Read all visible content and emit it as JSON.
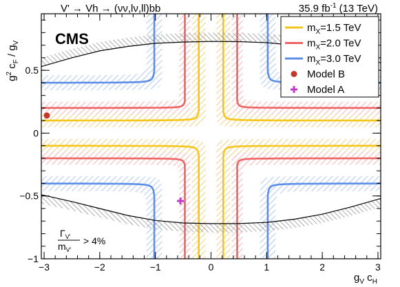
{
  "chart_data": {
    "type": "line",
    "header_left": "V' → Vh → (νν,lν,ll)bb",
    "header_right_lumi": "35.9 fb",
    "header_right_lumi_sup": "-1",
    "header_right_energy": "(13 TeV)",
    "logo": "CMS",
    "xlabel_main": "g",
    "xlabel_sub1": "V",
    "xlabel_mid": " c",
    "xlabel_sub2": "H",
    "ylabel_pre": "g",
    "ylabel_sup": "2",
    "ylabel_mid": " c",
    "ylabel_sub1": "F",
    "ylabel_post": " / g",
    "ylabel_sub2": "V",
    "xlim": [
      -3.05,
      3.05
    ],
    "ylim": [
      -1.0,
      0.95
    ],
    "xticks": [
      "−3",
      "−2",
      "−1",
      "0",
      "1",
      "2",
      "3"
    ],
    "yticks": [
      "−1",
      "−0.5",
      "0",
      "0.5"
    ],
    "width_note_num": "Γ",
    "width_note_num_sub": "V'",
    "width_note_den": "m",
    "width_note_den_sub": "V'",
    "width_note_rel": "> 4%",
    "legend": {
      "placement": "top-right",
      "entries": [
        {
          "label_pre": "m",
          "label_sub": "X",
          "label_post": "=1.5 TeV",
          "color": "#f5c518",
          "kind": "line"
        },
        {
          "label_pre": "m",
          "label_sub": "X",
          "label_post": "=2.0 TeV",
          "color": "#ef6262",
          "kind": "line"
        },
        {
          "label_pre": "m",
          "label_sub": "X",
          "label_post": "=3.0 TeV",
          "color": "#5b8ee6",
          "kind": "line"
        },
        {
          "label_pre": "Model B",
          "label_sub": "",
          "label_post": "",
          "color": "#c0392b",
          "kind": "dot"
        },
        {
          "label_pre": "Model A",
          "label_sub": "",
          "label_post": "",
          "color": "#c03cc8",
          "kind": "plus"
        }
      ]
    },
    "series": [
      {
        "name": "m_X=1.5 TeV",
        "color": "#f5c518",
        "hatch": "#f3d38a",
        "x_asym": 0.2,
        "y_asym": 0.1,
        "xs": 0.22,
        "ys": 0.095,
        "hx": 0.25,
        "hy": 0.11
      },
      {
        "name": "m_X=2.0 TeV",
        "color": "#ef6262",
        "hatch": "#f6b9b9",
        "x_asym": 0.45,
        "y_asym": 0.2,
        "xs": 0.1,
        "ys": 0.045,
        "hx": 0.2,
        "hy": 0.1
      },
      {
        "name": "m_X=3.0 TeV",
        "color": "#5b8ee6",
        "hatch": "#b8cdef",
        "x_asym": 1.0,
        "y_asym": 0.4,
        "xs": 0.05,
        "ys": 0.02,
        "hx": 0.28,
        "hy": 0.12
      }
    ],
    "width_boundary": {
      "color": "#000000",
      "upper": [
        [
          -3.05,
          0.53
        ],
        [
          -2.5,
          0.6
        ],
        [
          -2.0,
          0.655
        ],
        [
          -1.5,
          0.69
        ],
        [
          -1.0,
          0.715
        ],
        [
          -0.5,
          0.725
        ],
        [
          0,
          0.73
        ],
        [
          0.5,
          0.728
        ],
        [
          1.0,
          0.72
        ],
        [
          1.5,
          0.7
        ],
        [
          2.0,
          0.67
        ],
        [
          2.5,
          0.625
        ],
        [
          3.05,
          0.56
        ]
      ],
      "lower": [
        [
          -3.05,
          -0.49
        ],
        [
          -2.5,
          -0.545
        ],
        [
          -2.0,
          -0.6
        ],
        [
          -1.5,
          -0.655
        ],
        [
          -1.0,
          -0.695
        ],
        [
          -0.5,
          -0.715
        ],
        [
          0,
          -0.72
        ],
        [
          0.5,
          -0.72
        ],
        [
          1.0,
          -0.71
        ],
        [
          1.5,
          -0.685
        ],
        [
          2.0,
          -0.645
        ],
        [
          2.5,
          -0.59
        ],
        [
          3.05,
          -0.52
        ]
      ]
    },
    "points": [
      {
        "name": "Model B",
        "x": -2.95,
        "y": 0.14
      },
      {
        "name": "Model A",
        "x": -0.55,
        "y": -0.54
      }
    ]
  }
}
